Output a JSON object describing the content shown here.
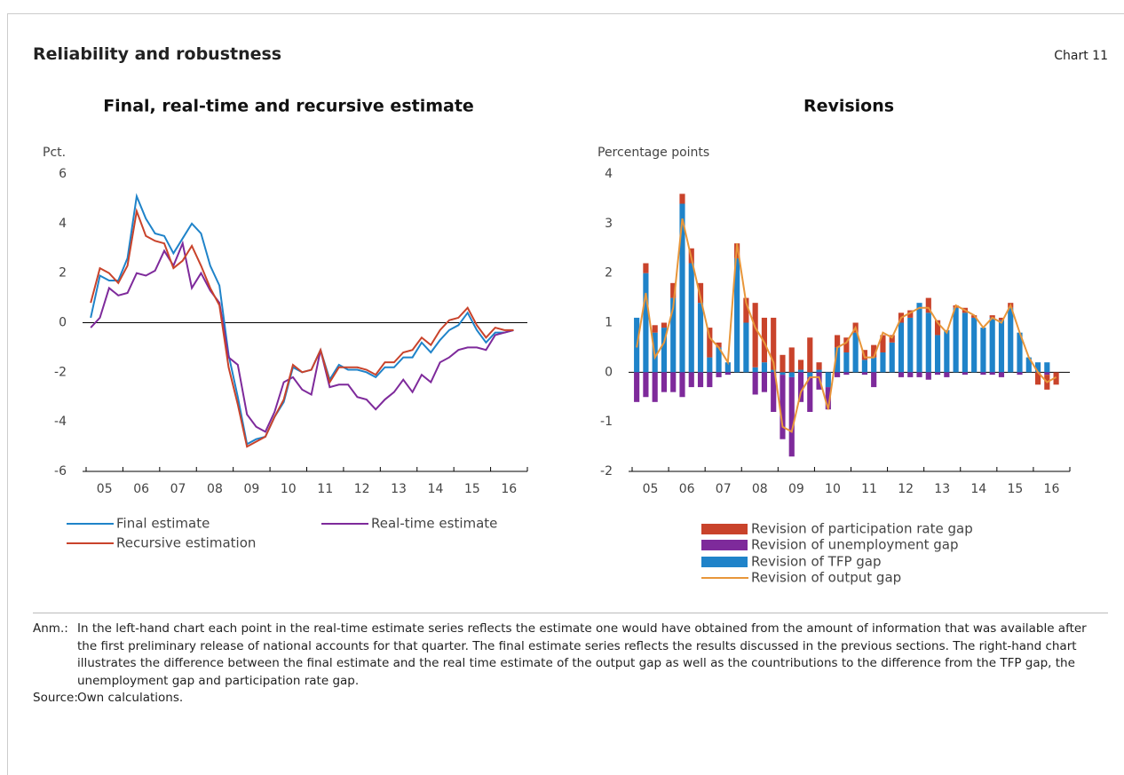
{
  "header": {
    "title": "Reliability and robustness",
    "chart_label": "Chart 11"
  },
  "chart_data": [
    {
      "type": "line",
      "title": "Final, real-time and recursive estimate",
      "y_label": "Pct.",
      "categories": [
        null,
        "05",
        null,
        null,
        null,
        "06",
        null,
        null,
        null,
        "07",
        null,
        null,
        null,
        "08",
        null,
        null,
        null,
        "09",
        null,
        null,
        null,
        "10",
        null,
        null,
        null,
        "11",
        null,
        null,
        null,
        "12",
        null,
        null,
        null,
        "13",
        null,
        null,
        null,
        "14",
        null,
        null,
        null,
        "15",
        null,
        null,
        null,
        "16",
        null
      ],
      "ylim": [
        -6,
        6
      ],
      "yticks": [
        -6,
        -4,
        -2,
        0,
        2,
        4,
        6
      ],
      "series": [
        {
          "name": "Final estimate",
          "color": "#1f83c9",
          "values": [
            0.2,
            1.9,
            1.7,
            1.7,
            2.6,
            5.1,
            4.2,
            3.6,
            3.5,
            2.8,
            3.4,
            4.0,
            3.6,
            2.3,
            1.5,
            -1.3,
            -3.0,
            -4.9,
            -4.7,
            -4.6,
            -3.8,
            -3.2,
            -1.8,
            -2.0,
            -1.9,
            -1.1,
            -2.3,
            -1.7,
            -1.9,
            -1.9,
            -2.0,
            -2.2,
            -1.8,
            -1.8,
            -1.4,
            -1.4,
            -0.8,
            -1.2,
            -0.7,
            -0.3,
            -0.1,
            0.4,
            -0.3,
            -0.8,
            -0.4,
            -0.4,
            -0.3
          ]
        },
        {
          "name": "Real-time estimate",
          "color": "#7e2a9b",
          "values": [
            -0.2,
            0.2,
            1.4,
            1.1,
            1.2,
            2.0,
            1.9,
            2.1,
            2.9,
            2.3,
            3.2,
            1.4,
            2.0,
            1.3,
            0.8,
            -1.4,
            -1.7,
            -3.7,
            -4.2,
            -4.4,
            -3.6,
            -2.4,
            -2.2,
            -2.7,
            -2.9,
            -1.1,
            -2.6,
            -2.5,
            -2.5,
            -3.0,
            -3.1,
            -3.5,
            -3.1,
            -2.8,
            -2.3,
            -2.8,
            -2.1,
            -2.4,
            -1.6,
            -1.4,
            -1.1,
            -1.0,
            -1.0,
            -1.1,
            -0.5,
            -0.4,
            -0.3
          ]
        },
        {
          "name": "Recursive estimation",
          "color": "#c9432b",
          "values": [
            0.8,
            2.2,
            2.0,
            1.6,
            2.3,
            4.5,
            3.5,
            3.3,
            3.2,
            2.2,
            2.5,
            3.1,
            2.3,
            1.4,
            0.7,
            -1.8,
            -3.3,
            -5.0,
            -4.8,
            -4.6,
            -3.8,
            -3.1,
            -1.7,
            -2.0,
            -1.9,
            -1.1,
            -2.4,
            -1.8,
            -1.8,
            -1.8,
            -1.9,
            -2.1,
            -1.6,
            -1.6,
            -1.2,
            -1.1,
            -0.6,
            -0.9,
            -0.3,
            0.1,
            0.2,
            0.6,
            -0.1,
            -0.6,
            -0.2,
            -0.3,
            -0.3
          ]
        }
      ]
    },
    {
      "type": "bar",
      "stacked": true,
      "title": "Revisions",
      "y_label": "Percentage points",
      "categories": [
        null,
        "05",
        null,
        null,
        null,
        "06",
        null,
        null,
        null,
        "07",
        null,
        null,
        null,
        "08",
        null,
        null,
        null,
        "09",
        null,
        null,
        null,
        "10",
        null,
        null,
        null,
        "11",
        null,
        null,
        null,
        "12",
        null,
        null,
        null,
        "13",
        null,
        null,
        null,
        "14",
        null,
        null,
        null,
        "15",
        null,
        null,
        null,
        "16",
        null
      ],
      "ylim": [
        -2,
        4
      ],
      "yticks": [
        -2,
        -1,
        0,
        1,
        2,
        3,
        4
      ],
      "series": [
        {
          "name": "Revision of participation rate gap",
          "type": "bar",
          "color": "#c9432b",
          "values": [
            0.0,
            0.2,
            0.15,
            0.1,
            0.3,
            0.2,
            0.3,
            0.4,
            0.6,
            0.1,
            0.0,
            0.3,
            0.5,
            1.3,
            0.9,
            1.05,
            0.35,
            0.5,
            0.2,
            0.7,
            0.15,
            0.0,
            0.25,
            0.3,
            0.2,
            0.2,
            0.25,
            0.35,
            0.15,
            0.2,
            0.15,
            0.0,
            0.3,
            0.3,
            0.0,
            0.05,
            0.1,
            0.05,
            0.0,
            0.05,
            0.05,
            0.1,
            0.0,
            0.0,
            -0.25,
            -0.3,
            -0.25
          ]
        },
        {
          "name": "Revision of unemployment gap",
          "type": "bar",
          "color": "#7e2a9b",
          "values": [
            -0.6,
            -0.5,
            -0.6,
            -0.4,
            -0.4,
            -0.5,
            -0.3,
            -0.3,
            -0.3,
            -0.1,
            -0.05,
            0,
            0,
            -0.45,
            -0.4,
            -0.8,
            -1.3,
            -1.6,
            -0.6,
            -0.7,
            -0.35,
            -0.45,
            -0.1,
            -0.05,
            0,
            -0.05,
            -0.3,
            0,
            0,
            -0.1,
            -0.1,
            -0.1,
            -0.15,
            -0.05,
            -0.1,
            0,
            -0.05,
            0,
            -0.05,
            -0.05,
            -0.1,
            0,
            -0.05,
            0,
            0,
            -0.05,
            0
          ]
        },
        {
          "name": "Revision of TFP gap",
          "type": "bar",
          "color": "#1f83c9",
          "values": [
            1.1,
            2.0,
            0.8,
            0.9,
            1.5,
            3.4,
            2.2,
            1.4,
            0.3,
            0.5,
            0.2,
            2.3,
            1.0,
            0.1,
            0.2,
            0.05,
            -0.05,
            -0.1,
            0.05,
            -0.1,
            0.05,
            -0.3,
            0.5,
            0.4,
            0.8,
            0.25,
            0.3,
            0.4,
            0.6,
            1.0,
            1.1,
            1.4,
            1.2,
            0.75,
            0.85,
            1.3,
            1.2,
            1.1,
            0.9,
            1.1,
            1.05,
            1.3,
            0.8,
            0.3,
            0.2,
            0.2,
            0.0
          ]
        },
        {
          "name": "Revision of output gap",
          "type": "line",
          "color": "#e8963a",
          "values": [
            0.5,
            1.6,
            0.3,
            0.6,
            1.3,
            3.1,
            2.3,
            1.5,
            0.7,
            0.5,
            0.2,
            2.6,
            1.4,
            0.9,
            0.6,
            0.2,
            -1.1,
            -1.2,
            -0.4,
            -0.1,
            -0.1,
            -0.75,
            0.5,
            0.6,
            0.9,
            0.3,
            0.3,
            0.8,
            0.7,
            1.1,
            1.2,
            1.3,
            1.3,
            1.0,
            0.8,
            1.35,
            1.25,
            1.15,
            0.9,
            1.1,
            1.0,
            1.35,
            0.8,
            0.3,
            0.0,
            -0.2,
            -0.1
          ]
        }
      ]
    }
  ],
  "notes": {
    "note_label": "Anm.:",
    "note_text": "In the left-hand chart each point in the real-time estimate series reflects the estimate one would have obtained from the amount of information that was available after the first preliminary release of national accounts for that quarter. The final estimate series reflects the results discussed in the previous sections. The right-hand chart illustrates the difference between the final estimate and the real time estimate of the output gap as well as the countributions to the difference from the TFP gap, the unemployment gap and participation rate gap.",
    "source_label": "Source:",
    "source_text": "Own calculations."
  }
}
